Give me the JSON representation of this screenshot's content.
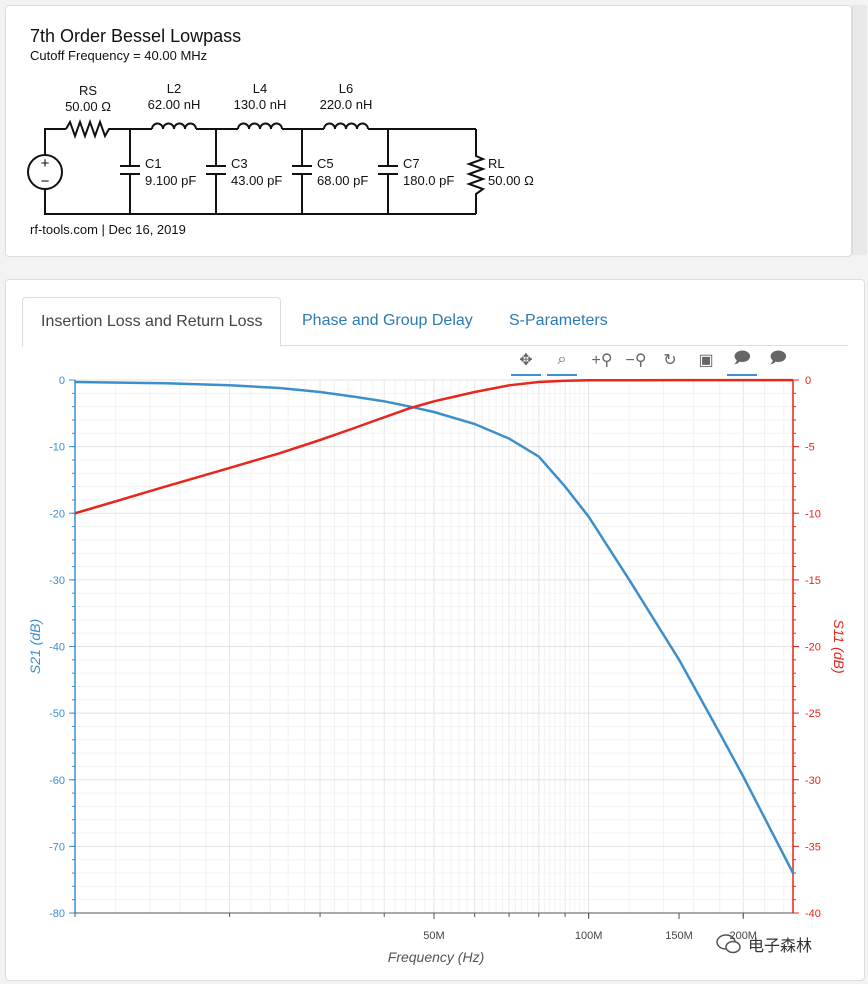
{
  "schematic": {
    "title": "7th Order Bessel Lowpass",
    "subtitle": "Cutoff Frequency = 40.00 MHz",
    "footer": "rf-tools.com | Dec 16, 2019",
    "rs": {
      "name": "RS",
      "value": "50.00 Ω"
    },
    "inductors": [
      {
        "name": "L2",
        "value": "62.00 nH"
      },
      {
        "name": "L4",
        "value": "130.0 nH"
      },
      {
        "name": "L6",
        "value": "220.0 nH"
      }
    ],
    "capacitors": [
      {
        "name": "C1",
        "value": "9.100 pF"
      },
      {
        "name": "C3",
        "value": "43.00 pF"
      },
      {
        "name": "C5",
        "value": "68.00 pF"
      },
      {
        "name": "C7",
        "value": "180.0 pF"
      }
    ],
    "rl": {
      "name": "RL",
      "value": "50.00 Ω"
    },
    "source_plus": "+",
    "source_minus": "−"
  },
  "tabs": [
    {
      "label": "Insertion Loss and Return Loss",
      "active": true
    },
    {
      "label": "Phase and Group Delay",
      "active": false
    },
    {
      "label": "S-Parameters",
      "active": false
    }
  ],
  "toolbar": [
    {
      "icon": "pan-icon",
      "glyph": "✥",
      "active": true
    },
    {
      "icon": "box-zoom-icon",
      "glyph": "⌕",
      "active": true
    },
    {
      "icon": "zoom-in-icon",
      "glyph": "+⚲",
      "active": false
    },
    {
      "icon": "zoom-out-icon",
      "glyph": "−⚲",
      "active": false
    },
    {
      "icon": "reset-icon",
      "glyph": "↻",
      "active": false
    },
    {
      "icon": "save-icon",
      "glyph": "▣",
      "active": false
    },
    {
      "icon": "hover-icon",
      "glyph": "🗩",
      "active": true
    },
    {
      "icon": "hover-icon-2",
      "glyph": "🗩",
      "active": false
    }
  ],
  "watermark": "电子森林",
  "chart_data": {
    "type": "line",
    "xlabel": "Frequency (Hz)",
    "ylabel_left": "S21 (dB)",
    "ylabel_right": "S11 (dB)",
    "x_ticks": [
      {
        "value": 50000000,
        "label": "50M"
      },
      {
        "value": 100000000,
        "label": "100M"
      },
      {
        "value": 150000000,
        "label": "150M"
      },
      {
        "value": 200000000,
        "label": "200M"
      }
    ],
    "x_scale": "log",
    "x_range": [
      10000000,
      250000000
    ],
    "y_left_range": [
      -80,
      0
    ],
    "y_left_ticks": [
      0,
      -10,
      -20,
      -30,
      -40,
      -50,
      -60,
      -70,
      -80
    ],
    "y_right_range": [
      -40,
      0
    ],
    "y_right_ticks": [
      0,
      -5,
      -10,
      -15,
      -20,
      -25,
      -30,
      -35,
      -40
    ],
    "grid": true,
    "series": [
      {
        "name": "S21 (dB)",
        "axis": "left",
        "color": "#3d8fcc",
        "x": [
          10000000,
          15000000,
          20000000,
          25000000,
          30000000,
          35000000,
          40000000,
          45000000,
          50000000,
          60000000,
          70000000,
          80000000,
          90000000,
          100000000,
          120000000,
          150000000,
          180000000,
          200000000,
          250000000
        ],
        "y": [
          -0.3,
          -0.5,
          -0.8,
          -1.2,
          -1.8,
          -2.5,
          -3.2,
          -4.0,
          -4.8,
          -6.6,
          -8.8,
          -11.5,
          -16.0,
          -20.5,
          -30.0,
          -42.0,
          -53.0,
          -59.5,
          -74.0
        ]
      },
      {
        "name": "S11 (dB)",
        "axis": "right",
        "color": "#e8261c",
        "x": [
          10000000,
          15000000,
          20000000,
          25000000,
          30000000,
          35000000,
          40000000,
          45000000,
          50000000,
          60000000,
          70000000,
          80000000,
          90000000,
          100000000,
          150000000,
          200000000,
          250000000
        ],
        "y": [
          -10.0,
          -8.0,
          -6.6,
          -5.5,
          -4.5,
          -3.6,
          -2.8,
          -2.1,
          -1.6,
          -0.9,
          -0.4,
          -0.15,
          -0.05,
          -0.02,
          -0.01,
          -0.01,
          -0.01
        ]
      }
    ]
  }
}
